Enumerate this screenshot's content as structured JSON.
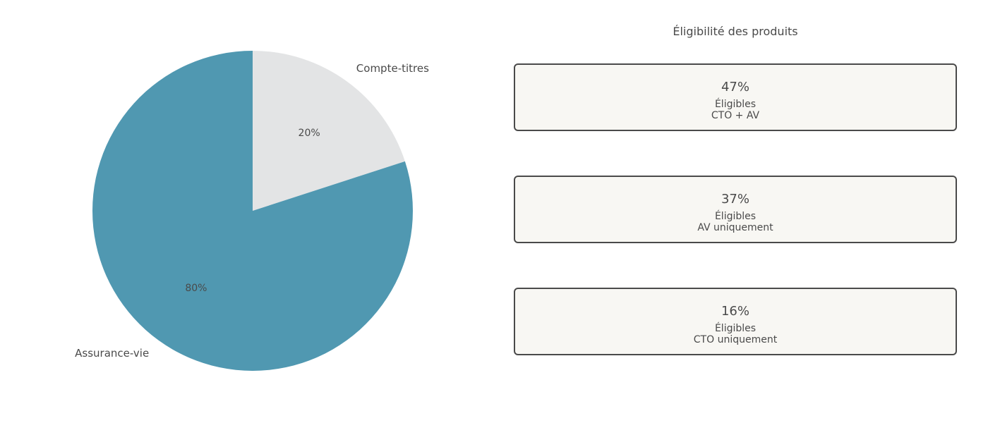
{
  "chart_data": {
    "type": "pie",
    "start_angle_deg": 90,
    "direction": "clockwise",
    "slices": [
      {
        "label": "Compte-titres",
        "value": 20,
        "pct_label": "20%",
        "color": "#e3e4e5"
      },
      {
        "label": "Assurance-vie",
        "value": 80,
        "pct_label": "80%",
        "color": "#5098b1"
      }
    ]
  },
  "panel": {
    "title": "Éligibilité des produits",
    "cards": [
      {
        "pct": "47%",
        "line1": "Éligibles",
        "line2": "CTO + AV"
      },
      {
        "pct": "37%",
        "line1": "Éligibles",
        "line2": "AV uniquement"
      },
      {
        "pct": "16%",
        "line1": "Éligibles",
        "line2": "CTO uniquement"
      }
    ]
  },
  "colors": {
    "text": "#4a4a4a",
    "card_background": "#f8f7f3",
    "card_border": "#4a4a4a"
  }
}
